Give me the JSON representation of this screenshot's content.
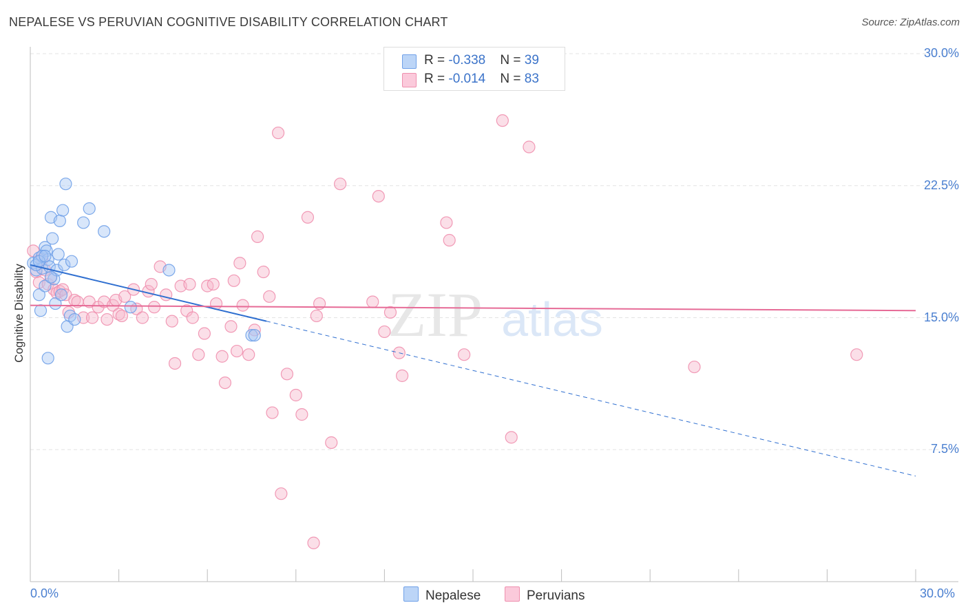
{
  "header": {
    "title": "NEPALESE VS PERUVIAN COGNITIVE DISABILITY CORRELATION CHART",
    "source": "Source: ZipAtlas.com"
  },
  "legend_top": {
    "rows": [
      {
        "r_label": "R = ",
        "r_value": "-0.338",
        "n_label": "N = ",
        "n_value": "39",
        "color": "#a8c8f5"
      },
      {
        "r_label": "R = ",
        "r_value": "-0.014",
        "n_label": "N = ",
        "n_value": "83",
        "color": "#f7b9cc"
      }
    ]
  },
  "legend_bottom": {
    "items": [
      {
        "label": "Nepalese",
        "color": "#a8c8f5"
      },
      {
        "label": "Peruvians",
        "color": "#f7b9cc"
      }
    ]
  },
  "watermark": {
    "zip": "ZIP",
    "atlas": "atlas"
  },
  "chart_data": {
    "type": "scatter",
    "ylabel": "Cognitive Disability",
    "xlim": [
      0,
      30
    ],
    "ylim": [
      0,
      30
    ],
    "x_tick_labels": [
      "0.0%",
      "30.0%"
    ],
    "y_ticks": [
      7.5,
      15.0,
      22.5,
      30.0
    ],
    "y_tick_labels": [
      "7.5%",
      "15.0%",
      "22.5%",
      "30.0%"
    ],
    "grid": true,
    "series": [
      {
        "name": "Nepalese",
        "color": "#6fa0e8",
        "fill": "#a8c8f5",
        "trend": {
          "x1": 0.0,
          "y1": 18.0,
          "x2": 8.0,
          "y2": 14.8,
          "dash_to_x": 30.0
        },
        "points": [
          [
            0.1,
            18.1
          ],
          [
            0.2,
            17.7
          ],
          [
            0.3,
            18.4
          ],
          [
            0.4,
            17.8
          ],
          [
            0.3,
            16.3
          ],
          [
            0.35,
            15.4
          ],
          [
            0.5,
            19.0
          ],
          [
            0.55,
            18.8
          ],
          [
            0.6,
            18.3
          ],
          [
            0.65,
            17.9
          ],
          [
            0.7,
            20.7
          ],
          [
            0.75,
            19.5
          ],
          [
            0.8,
            17.2
          ],
          [
            0.85,
            15.8
          ],
          [
            0.9,
            17.7
          ],
          [
            0.95,
            18.6
          ],
          [
            1.0,
            20.5
          ],
          [
            1.05,
            16.3
          ],
          [
            1.1,
            21.1
          ],
          [
            1.15,
            18.0
          ],
          [
            1.2,
            22.6
          ],
          [
            1.25,
            14.5
          ],
          [
            1.35,
            15.1
          ],
          [
            1.4,
            18.2
          ],
          [
            1.5,
            14.9
          ],
          [
            1.8,
            20.4
          ],
          [
            2.0,
            21.2
          ],
          [
            2.5,
            19.9
          ],
          [
            3.4,
            15.6
          ],
          [
            4.7,
            17.7
          ],
          [
            7.5,
            14.0
          ],
          [
            0.6,
            12.7
          ],
          [
            0.2,
            18.0
          ],
          [
            0.4,
            18.5
          ],
          [
            0.5,
            16.8
          ],
          [
            0.7,
            17.3
          ],
          [
            0.3,
            18.2
          ],
          [
            0.5,
            18.5
          ],
          [
            7.6,
            14.0
          ]
        ]
      },
      {
        "name": "Peruvians",
        "color": "#ef8fae",
        "fill": "#f7b9cc",
        "trend": {
          "x1": 0.0,
          "y1": 15.7,
          "x2": 30.0,
          "y2": 15.4
        },
        "points": [
          [
            0.1,
            18.8
          ],
          [
            0.2,
            17.6
          ],
          [
            0.3,
            17.0
          ],
          [
            0.4,
            18.3
          ],
          [
            0.5,
            17.7
          ],
          [
            0.6,
            16.9
          ],
          [
            0.7,
            17.3
          ],
          [
            0.8,
            16.6
          ],
          [
            0.9,
            16.4
          ],
          [
            1.0,
            16.5
          ],
          [
            1.1,
            16.6
          ],
          [
            1.2,
            16.3
          ],
          [
            1.3,
            15.3
          ],
          [
            1.5,
            16.0
          ],
          [
            1.6,
            15.9
          ],
          [
            1.8,
            15.0
          ],
          [
            2.0,
            15.9
          ],
          [
            2.1,
            15.0
          ],
          [
            2.3,
            15.6
          ],
          [
            2.5,
            15.9
          ],
          [
            2.6,
            14.9
          ],
          [
            2.8,
            15.7
          ],
          [
            2.9,
            16.0
          ],
          [
            3.0,
            15.2
          ],
          [
            3.1,
            15.1
          ],
          [
            3.2,
            16.2
          ],
          [
            3.5,
            16.6
          ],
          [
            3.6,
            15.5
          ],
          [
            3.8,
            15.0
          ],
          [
            4.0,
            16.5
          ],
          [
            4.1,
            16.9
          ],
          [
            4.2,
            15.6
          ],
          [
            4.4,
            17.9
          ],
          [
            4.6,
            16.3
          ],
          [
            4.8,
            14.8
          ],
          [
            4.9,
            12.4
          ],
          [
            5.1,
            16.8
          ],
          [
            5.3,
            15.4
          ],
          [
            5.4,
            16.9
          ],
          [
            5.5,
            15.0
          ],
          [
            5.7,
            12.9
          ],
          [
            5.9,
            14.1
          ],
          [
            6.0,
            16.8
          ],
          [
            6.2,
            16.9
          ],
          [
            6.3,
            15.8
          ],
          [
            6.5,
            12.8
          ],
          [
            6.6,
            11.3
          ],
          [
            6.8,
            14.5
          ],
          [
            6.9,
            17.1
          ],
          [
            7.0,
            13.1
          ],
          [
            7.1,
            18.1
          ],
          [
            7.2,
            15.7
          ],
          [
            7.4,
            12.9
          ],
          [
            7.6,
            14.3
          ],
          [
            7.7,
            19.6
          ],
          [
            7.9,
            17.6
          ],
          [
            8.1,
            16.2
          ],
          [
            8.2,
            9.6
          ],
          [
            8.4,
            25.5
          ],
          [
            8.5,
            5.0
          ],
          [
            8.7,
            11.8
          ],
          [
            9.0,
            10.6
          ],
          [
            9.2,
            9.5
          ],
          [
            9.4,
            20.7
          ],
          [
            9.6,
            2.2
          ],
          [
            9.7,
            15.1
          ],
          [
            9.8,
            15.8
          ],
          [
            10.2,
            7.9
          ],
          [
            10.5,
            22.6
          ],
          [
            11.6,
            15.9
          ],
          [
            11.8,
            21.9
          ],
          [
            12.0,
            14.2
          ],
          [
            12.2,
            15.3
          ],
          [
            12.5,
            13.0
          ],
          [
            12.6,
            11.7
          ],
          [
            14.1,
            20.4
          ],
          [
            14.2,
            19.4
          ],
          [
            14.7,
            12.9
          ],
          [
            16.0,
            26.2
          ],
          [
            16.3,
            8.2
          ],
          [
            16.9,
            24.7
          ],
          [
            22.5,
            12.2
          ],
          [
            28.0,
            12.9
          ]
        ]
      }
    ]
  }
}
